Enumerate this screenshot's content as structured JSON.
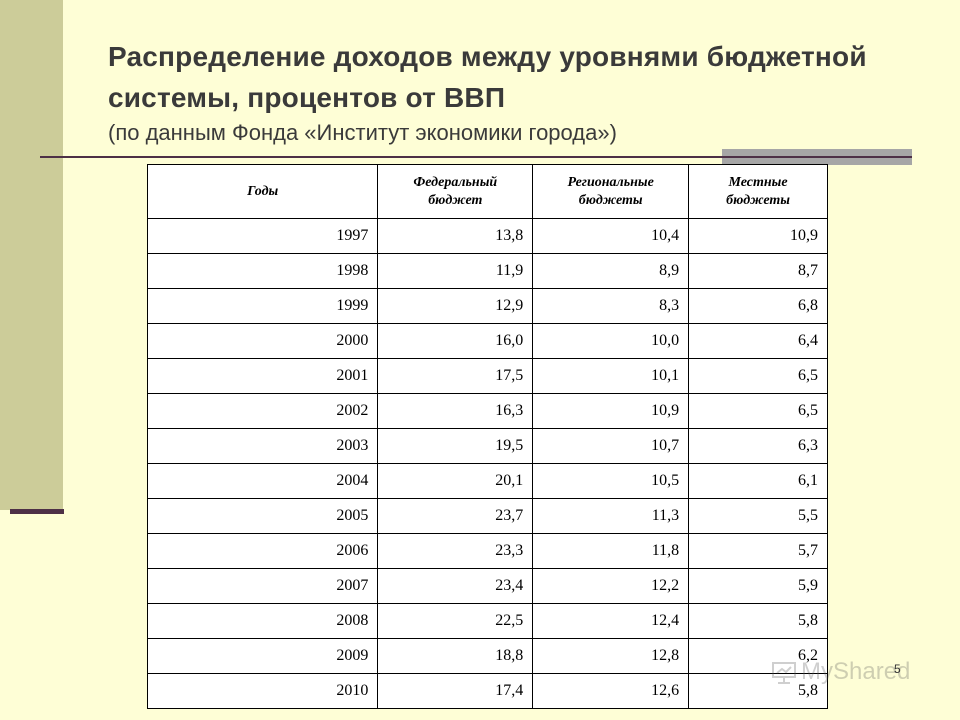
{
  "title": {
    "line1": "Распределение доходов между уровнями бюджетной",
    "line2": "системы, процентов от ВВП",
    "subtitle": "(по данным Фонда «Институт экономики города»)"
  },
  "table": {
    "headers": [
      "Годы",
      "Федеральный бюджет",
      "Региональные бюджеты",
      "Местные бюджеты"
    ],
    "rows": [
      [
        "1997",
        "13,8",
        "10,4",
        "10,9"
      ],
      [
        "1998",
        "11,9",
        "8,9",
        "8,7"
      ],
      [
        "1999",
        "12,9",
        "8,3",
        "6,8"
      ],
      [
        "2000",
        "16,0",
        "10,0",
        "6,4"
      ],
      [
        "2001",
        "17,5",
        "10,1",
        "6,5"
      ],
      [
        "2002",
        "16,3",
        "10,9",
        "6,5"
      ],
      [
        "2003",
        "19,5",
        "10,7",
        "6,3"
      ],
      [
        "2004",
        "20,1",
        "10,5",
        "6,1"
      ],
      [
        "2005",
        "23,7",
        "11,3",
        "5,5"
      ],
      [
        "2006",
        "23,3",
        "11,8",
        "5,7"
      ],
      [
        "2007",
        "23,4",
        "12,2",
        "5,9"
      ],
      [
        "2008",
        "22,5",
        "12,4",
        "5,8"
      ],
      [
        "2009",
        "18,8",
        "12,8",
        "6,2"
      ],
      [
        "2010",
        "17,4",
        "12,6",
        "5,8"
      ]
    ]
  },
  "page_number": "5",
  "watermark": "MyShared",
  "colors": {
    "background": "#fefed6",
    "left_bar": "#cccc99",
    "accent_line": "#4d3046",
    "accent_block": "#a6a6a6"
  }
}
